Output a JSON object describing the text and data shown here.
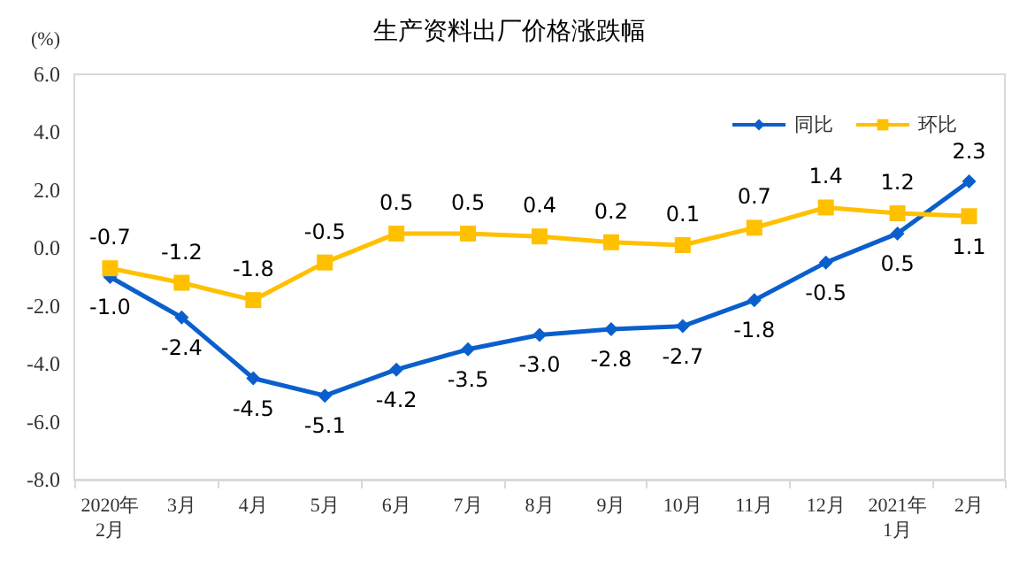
{
  "chart_data": {
    "type": "line",
    "title": "生产资料出厂价格涨跌幅",
    "ylabel": "(%)",
    "categories": [
      "2020年\n2月",
      "3月",
      "4月",
      "5月",
      "6月",
      "7月",
      "8月",
      "9月",
      "10月",
      "11月",
      "12月",
      "2021年\n1月",
      "2月"
    ],
    "series": [
      {
        "name": "同比",
        "color": "#0a5fcc",
        "marker": "diamond",
        "values": [
          -1.0,
          -2.4,
          -4.5,
          -5.1,
          -4.2,
          -3.5,
          -3.0,
          -2.8,
          -2.7,
          -1.8,
          -0.5,
          0.5,
          2.3
        ],
        "value_labels": [
          "-1.0",
          "-2.4",
          "-4.5",
          "-5.1",
          "-4.2",
          "-3.5",
          "-3.0",
          "-2.8",
          "-2.7",
          "-1.8",
          "-0.5",
          "0.5",
          "2.3"
        ]
      },
      {
        "name": "环比",
        "color": "#ffc000",
        "marker": "square",
        "values": [
          -0.7,
          -1.2,
          -1.8,
          -0.5,
          0.5,
          0.5,
          0.4,
          0.2,
          0.1,
          0.7,
          1.4,
          1.2,
          1.1
        ],
        "value_labels": [
          "-0.7",
          "-1.2",
          "-1.8",
          "-0.5",
          "0.5",
          "0.5",
          "0.4",
          "0.2",
          "0.1",
          "0.7",
          "1.4",
          "1.2",
          "1.1"
        ]
      }
    ],
    "ylim": [
      -8,
      6
    ],
    "yticks": [
      {
        "value": -8,
        "label": "-8.0"
      },
      {
        "value": -6,
        "label": "-6.0"
      },
      {
        "value": -4,
        "label": "-4.0"
      },
      {
        "value": -2,
        "label": "-2.0"
      },
      {
        "value": 0,
        "label": "0.0"
      },
      {
        "value": 2,
        "label": "2.0"
      },
      {
        "value": 4,
        "label": "4.0"
      },
      {
        "value": 6,
        "label": "6.0"
      }
    ],
    "grid": false,
    "legend": "top right"
  }
}
